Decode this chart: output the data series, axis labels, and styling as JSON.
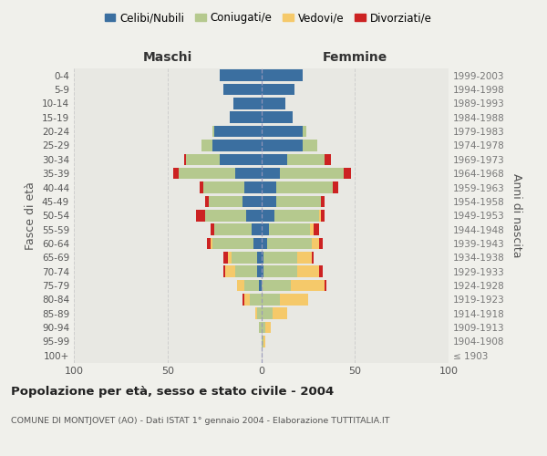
{
  "age_groups": [
    "100+",
    "95-99",
    "90-94",
    "85-89",
    "80-84",
    "75-79",
    "70-74",
    "65-69",
    "60-64",
    "55-59",
    "50-54",
    "45-49",
    "40-44",
    "35-39",
    "30-34",
    "25-29",
    "20-24",
    "15-19",
    "10-14",
    "5-9",
    "0-4"
  ],
  "birth_years": [
    "≤ 1903",
    "1904-1908",
    "1909-1913",
    "1914-1918",
    "1919-1923",
    "1924-1928",
    "1929-1933",
    "1934-1938",
    "1939-1943",
    "1944-1948",
    "1949-1953",
    "1954-1958",
    "1959-1963",
    "1964-1968",
    "1969-1973",
    "1974-1978",
    "1979-1983",
    "1984-1988",
    "1989-1993",
    "1994-1998",
    "1999-2003"
  ],
  "colors": {
    "celibi": "#3b6fa0",
    "coniugati": "#b5c98e",
    "vedovi": "#f5c96a",
    "divorziati": "#cc2222"
  },
  "males": {
    "celibi": [
      0,
      0,
      0,
      0,
      0,
      1,
      2,
      2,
      4,
      5,
      8,
      10,
      9,
      14,
      22,
      26,
      25,
      17,
      15,
      20,
      22
    ],
    "coniugati": [
      0,
      0,
      1,
      2,
      6,
      8,
      12,
      14,
      22,
      20,
      22,
      18,
      22,
      30,
      18,
      6,
      1,
      0,
      0,
      0,
      0
    ],
    "vedovi": [
      0,
      0,
      0,
      1,
      3,
      4,
      5,
      2,
      1,
      0,
      0,
      0,
      0,
      0,
      0,
      0,
      0,
      0,
      0,
      0,
      0
    ],
    "divorziati": [
      0,
      0,
      0,
      0,
      1,
      0,
      1,
      2,
      2,
      2,
      5,
      2,
      2,
      3,
      1,
      0,
      0,
      0,
      0,
      0,
      0
    ]
  },
  "females": {
    "celibi": [
      0,
      0,
      0,
      0,
      0,
      0,
      1,
      1,
      3,
      4,
      7,
      8,
      8,
      10,
      14,
      22,
      22,
      17,
      13,
      18,
      22
    ],
    "coniugati": [
      0,
      1,
      2,
      6,
      10,
      16,
      18,
      18,
      24,
      22,
      24,
      24,
      30,
      34,
      20,
      8,
      2,
      0,
      0,
      0,
      0
    ],
    "vedovi": [
      0,
      1,
      3,
      8,
      15,
      18,
      12,
      8,
      4,
      2,
      1,
      0,
      0,
      0,
      0,
      0,
      0,
      0,
      0,
      0,
      0
    ],
    "divorziati": [
      0,
      0,
      0,
      0,
      0,
      1,
      2,
      1,
      2,
      3,
      2,
      2,
      3,
      4,
      3,
      0,
      0,
      0,
      0,
      0,
      0
    ]
  },
  "title": "Popolazione per età, sesso e stato civile - 2004",
  "subtitle": "COMUNE DI MONTJOVET (AO) - Dati ISTAT 1° gennaio 2004 - Elaborazione TUTTITALIA.IT",
  "xlabel_left": "Maschi",
  "xlabel_right": "Femmine",
  "ylabel_left": "Fasce di età",
  "ylabel_right": "Anni di nascita",
  "xlim": 100,
  "legend_labels": [
    "Celibi/Nubili",
    "Coniugati/e",
    "Vedovi/e",
    "Divorziati/e"
  ],
  "bg_color": "#f0f0eb",
  "plot_bg": "#e8e8e3",
  "grid_color": "#cccccc"
}
